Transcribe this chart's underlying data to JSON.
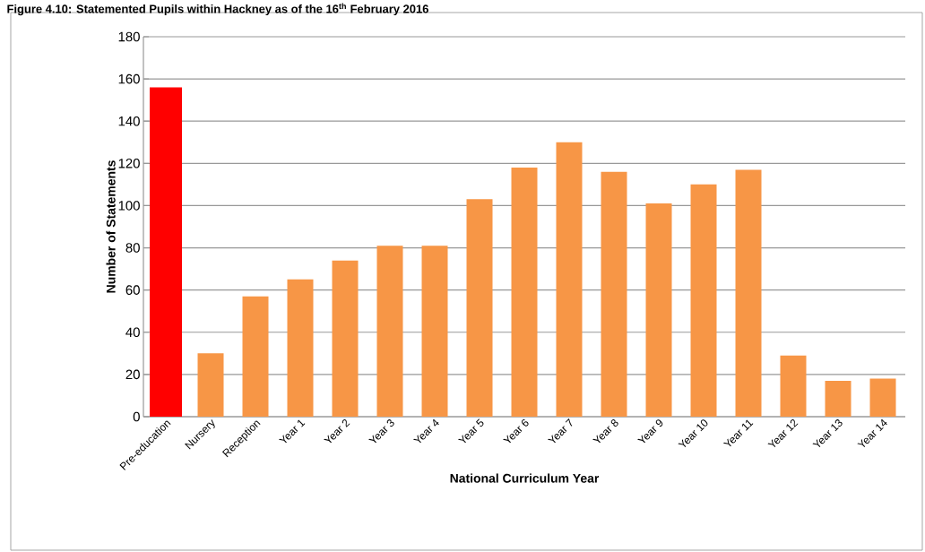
{
  "chart_data": {
    "type": "bar",
    "title": "Figure 4.10: Statemented Pupils within Hackney as of the 16$^{th}$ February 2016",
    "xlabel": "National Curriculum Year",
    "ylabel": "Number of Statements",
    "categories": [
      "Pre-education",
      "Nursery",
      "Reception",
      "Year 1",
      "Year 2",
      "Year 3",
      "Year 4",
      "Year 5",
      "Year 6",
      "Year 7",
      "Year 8",
      "Year 9",
      "Year 10",
      "Year 11",
      "Year 12",
      "Year 13",
      "Year 14"
    ],
    "values": [
      156,
      30,
      57,
      65,
      74,
      81,
      81,
      103,
      118,
      130,
      116,
      101,
      110,
      117,
      29,
      17,
      18
    ],
    "colors": [
      "#ff0000",
      "#f79646",
      "#f79646",
      "#f79646",
      "#f79646",
      "#f79646",
      "#f79646",
      "#f79646",
      "#f79646",
      "#f79646",
      "#f79646",
      "#f79646",
      "#f79646",
      "#f79646",
      "#f79646",
      "#f79646",
      "#f79646"
    ],
    "ylim": [
      0,
      180
    ],
    "yticks": [
      0,
      20,
      40,
      60,
      80,
      100,
      120,
      140,
      160,
      180
    ],
    "grid": "y"
  }
}
